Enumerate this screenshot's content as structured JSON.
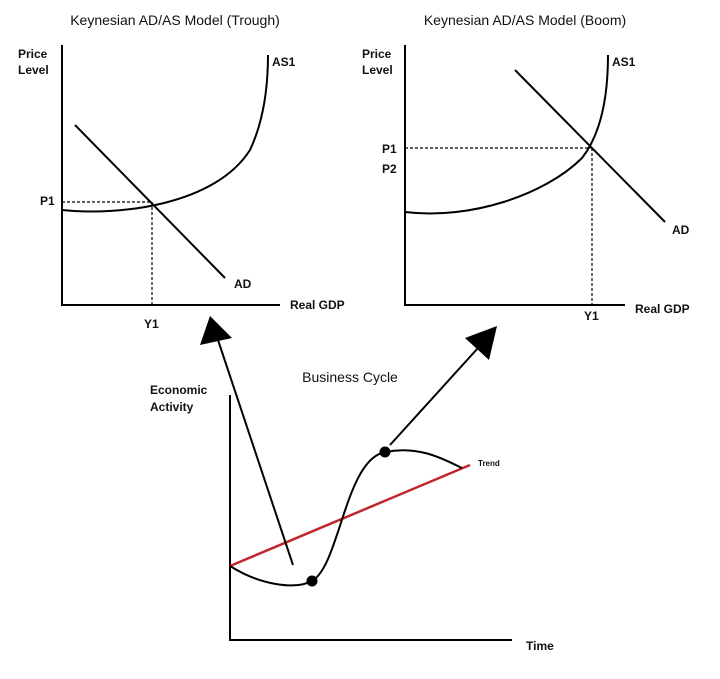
{
  "trough": {
    "title": "Keynesian AD/AS Model (Trough)",
    "y_label": [
      "Price",
      "Level"
    ],
    "x_label": "Real GDP",
    "as_label": "AS1",
    "ad_label": "AD",
    "price_labels": [
      "P1"
    ],
    "output_label": "Y1"
  },
  "boom": {
    "title": "Keynesian AD/AS Model (Boom)",
    "y_label": [
      "Price",
      "Level"
    ],
    "x_label": "Real GDP",
    "as_label": "AS1",
    "ad_label": "AD",
    "price_labels": [
      "P1",
      "P2"
    ],
    "output_label": "Y1"
  },
  "cycle": {
    "title": "Business Cycle",
    "y_label": [
      "Economic",
      "Activity"
    ],
    "x_label": "Time",
    "trend_label": "Trend"
  }
}
